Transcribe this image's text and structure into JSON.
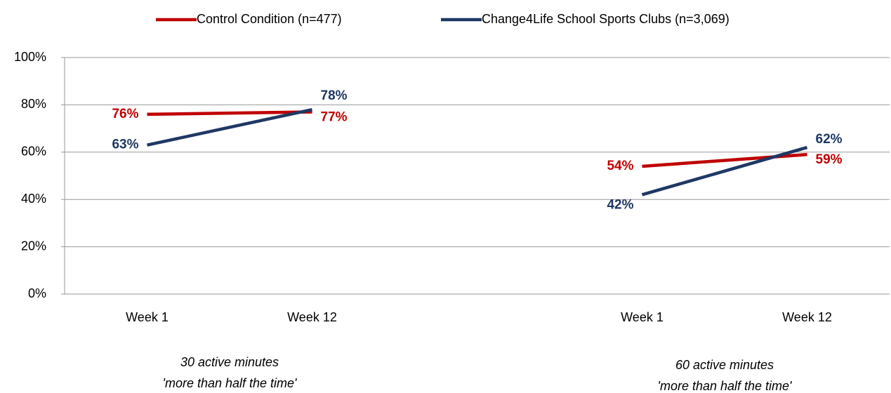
{
  "chart_data": {
    "type": "line",
    "categories": [
      "Week 1",
      "Week 12",
      null,
      "Week 1",
      "Week 12"
    ],
    "series": [
      {
        "name": "Control Condition (n=477)",
        "color": "#c00000",
        "values": [
          76,
          77,
          null,
          54,
          59
        ],
        "value_labels": [
          "76%",
          "77%",
          null,
          "54%",
          "59%"
        ]
      },
      {
        "name": "Change4Life School Sports Clubs (n=3,069)",
        "color": "#1f3864",
        "values": [
          63,
          78,
          null,
          42,
          62
        ],
        "value_labels": [
          "63%",
          "78%",
          null,
          "42%",
          "62%"
        ]
      }
    ],
    "ylim": [
      0,
      100
    ],
    "yticks": [
      {
        "value": 0,
        "label": "0%"
      },
      {
        "value": 20,
        "label": "20%"
      },
      {
        "value": 40,
        "label": "40%"
      },
      {
        "value": 60,
        "label": "60%"
      },
      {
        "value": 80,
        "label": "80%"
      },
      {
        "value": 100,
        "label": "100%"
      }
    ],
    "grid": true,
    "legend": "top",
    "group_labels": [
      [
        "30 active minutes",
        "'more than half the time'"
      ],
      [
        "60 active minutes",
        "'more than half the time'"
      ]
    ]
  }
}
